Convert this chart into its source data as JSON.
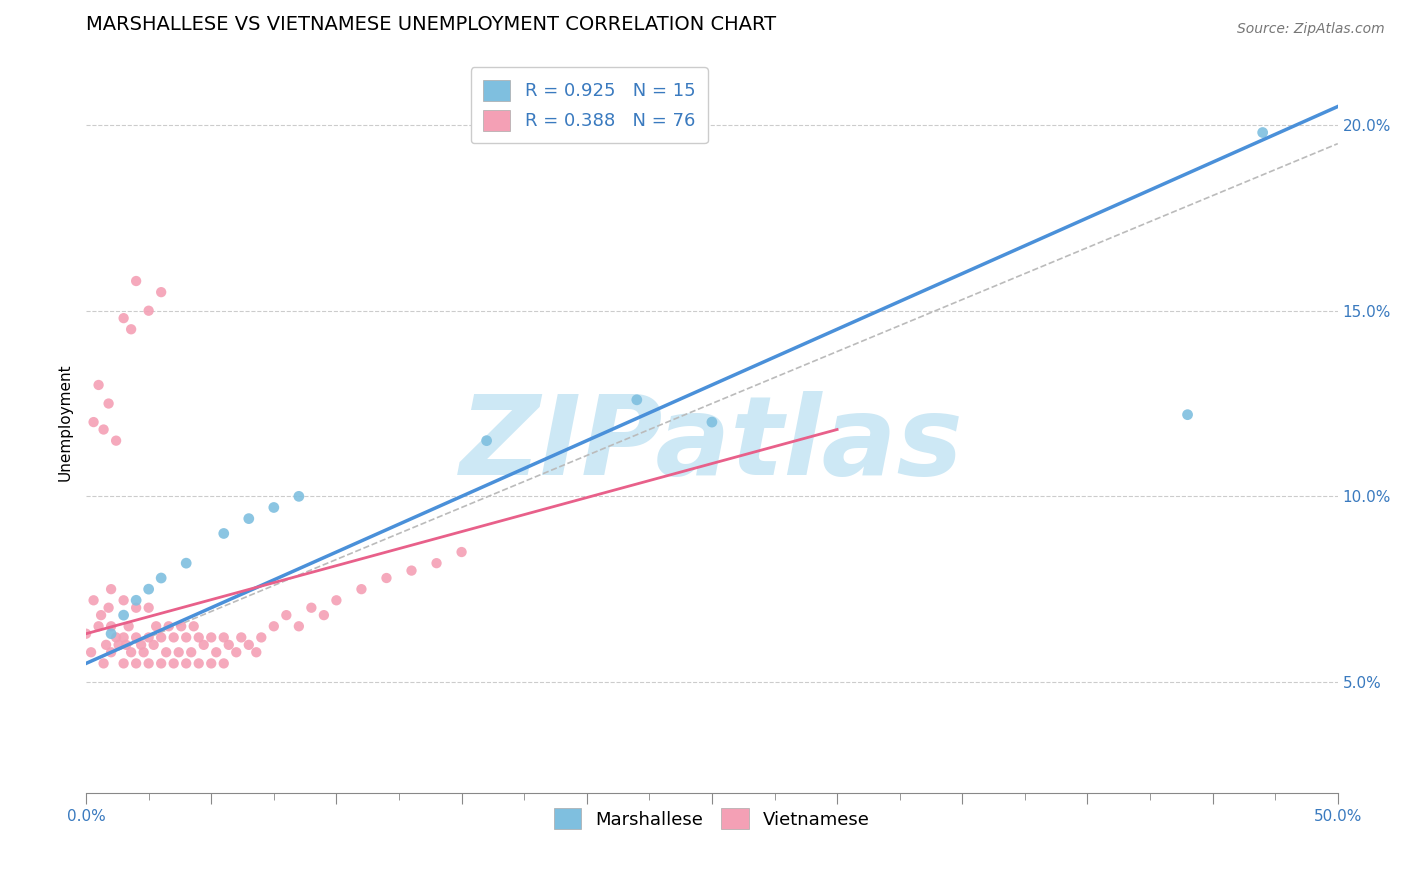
{
  "title": "MARSHALLESE VS VIETNAMESE UNEMPLOYMENT CORRELATION CHART",
  "source": "Source: ZipAtlas.com",
  "ylabel": "Unemployment",
  "xlim": [
    0.0,
    0.5
  ],
  "ylim": [
    0.02,
    0.22
  ],
  "yticks": [
    0.05,
    0.1,
    0.15,
    0.2
  ],
  "ytick_labels": [
    "5.0%",
    "10.0%",
    "15.0%",
    "20.0%"
  ],
  "marshallese_color": "#7fbfdf",
  "vietnamese_color": "#f4a0b5",
  "marshallese_R": 0.925,
  "marshallese_N": 15,
  "vietnamese_R": 0.388,
  "vietnamese_N": 76,
  "watermark": "ZIPatlas",
  "watermark_color": "#cde8f5",
  "background_color": "#ffffff",
  "grid_color": "#cccccc",
  "title_fontsize": 14,
  "axis_label_fontsize": 11,
  "tick_fontsize": 11,
  "legend_fontsize": 13,
  "marshallese_x": [
    0.01,
    0.015,
    0.02,
    0.025,
    0.03,
    0.04,
    0.055,
    0.065,
    0.075,
    0.085,
    0.16,
    0.22,
    0.25,
    0.44,
    0.47
  ],
  "marshallese_y": [
    0.063,
    0.068,
    0.072,
    0.075,
    0.078,
    0.082,
    0.09,
    0.094,
    0.097,
    0.1,
    0.115,
    0.126,
    0.12,
    0.122,
    0.198
  ],
  "vietnamese_x": [
    0.0,
    0.002,
    0.003,
    0.005,
    0.006,
    0.007,
    0.008,
    0.009,
    0.01,
    0.01,
    0.01,
    0.012,
    0.013,
    0.015,
    0.015,
    0.015,
    0.016,
    0.017,
    0.018,
    0.02,
    0.02,
    0.02,
    0.022,
    0.023,
    0.025,
    0.025,
    0.025,
    0.027,
    0.028,
    0.03,
    0.03,
    0.032,
    0.033,
    0.035,
    0.035,
    0.037,
    0.038,
    0.04,
    0.04,
    0.042,
    0.043,
    0.045,
    0.045,
    0.047,
    0.05,
    0.05,
    0.052,
    0.055,
    0.055,
    0.057,
    0.06,
    0.062,
    0.065,
    0.068,
    0.07,
    0.075,
    0.08,
    0.085,
    0.09,
    0.095,
    0.1,
    0.11,
    0.12,
    0.13,
    0.14,
    0.15,
    0.003,
    0.005,
    0.007,
    0.009,
    0.012,
    0.015,
    0.018,
    0.02,
    0.025,
    0.03
  ],
  "vietnamese_y": [
    0.063,
    0.058,
    0.072,
    0.065,
    0.068,
    0.055,
    0.06,
    0.07,
    0.058,
    0.065,
    0.075,
    0.062,
    0.06,
    0.055,
    0.062,
    0.072,
    0.06,
    0.065,
    0.058,
    0.055,
    0.062,
    0.07,
    0.06,
    0.058,
    0.055,
    0.062,
    0.07,
    0.06,
    0.065,
    0.055,
    0.062,
    0.058,
    0.065,
    0.055,
    0.062,
    0.058,
    0.065,
    0.055,
    0.062,
    0.058,
    0.065,
    0.055,
    0.062,
    0.06,
    0.055,
    0.062,
    0.058,
    0.055,
    0.062,
    0.06,
    0.058,
    0.062,
    0.06,
    0.058,
    0.062,
    0.065,
    0.068,
    0.065,
    0.07,
    0.068,
    0.072,
    0.075,
    0.078,
    0.08,
    0.082,
    0.085,
    0.12,
    0.13,
    0.118,
    0.125,
    0.115,
    0.148,
    0.145,
    0.158,
    0.15,
    0.155
  ],
  "blue_line_x0": 0.0,
  "blue_line_y0": 0.055,
  "blue_line_x1": 0.5,
  "blue_line_y1": 0.205,
  "pink_line_x0": 0.0,
  "pink_line_y0": 0.063,
  "pink_line_x1": 0.3,
  "pink_line_y1": 0.118,
  "gray_line_x0": 0.0,
  "gray_line_y0": 0.055,
  "gray_line_x1": 0.5,
  "gray_line_y1": 0.195
}
